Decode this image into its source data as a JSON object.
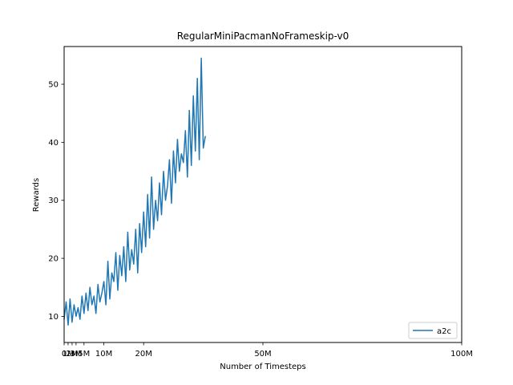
{
  "chart_data": {
    "type": "line",
    "title": "RegularMiniPacmanNoFrameskip-v0",
    "xlabel": "Number of Timesteps",
    "ylabel": "Rewards",
    "xlim": [
      0,
      100000000
    ],
    "ylim": [
      5.5,
      56.5
    ],
    "grid": false,
    "legend_position": "bottom-right",
    "x_ticks": [
      {
        "value": 0,
        "label": "0"
      },
      {
        "value": 1000000,
        "label": "1M"
      },
      {
        "value": 2000000,
        "label": "2M"
      },
      {
        "value": 3000000,
        "label": "3M"
      },
      {
        "value": 5000000,
        "label": "5M"
      },
      {
        "value": 10000000,
        "label": "10M"
      },
      {
        "value": 20000000,
        "label": "20M"
      },
      {
        "value": 50000000,
        "label": "50M"
      },
      {
        "value": 100000000,
        "label": "100M"
      }
    ],
    "y_ticks": [
      {
        "value": 10,
        "label": "10"
      },
      {
        "value": 20,
        "label": "20"
      },
      {
        "value": 30,
        "label": "30"
      },
      {
        "value": 40,
        "label": "40"
      },
      {
        "value": 50,
        "label": "50"
      }
    ],
    "series": [
      {
        "name": "a2c",
        "color": "#1f77b4",
        "x": [
          0,
          500000,
          1000000,
          1500000,
          2000000,
          2500000,
          3000000,
          3500000,
          4000000,
          4500000,
          5000000,
          5500000,
          6000000,
          6500000,
          7000000,
          7500000,
          8000000,
          8500000,
          9000000,
          9500000,
          10000000,
          10500000,
          11000000,
          11500000,
          12000000,
          12500000,
          13000000,
          13500000,
          14000000,
          14500000,
          15000000,
          15500000,
          16000000,
          16500000,
          17000000,
          17500000,
          18000000,
          18500000,
          19000000,
          19500000,
          20000000,
          20500000,
          21000000,
          21500000,
          22000000,
          22500000,
          23000000,
          23500000,
          24000000,
          24500000,
          25000000,
          25500000,
          26000000,
          26500000,
          27000000,
          27500000,
          28000000,
          28500000,
          29000000,
          29500000,
          30000000,
          30500000,
          31000000,
          31500000,
          32000000,
          32500000,
          33000000,
          33500000,
          34000000,
          34500000,
          35000000,
          35500000
        ],
        "y": [
          9.5,
          12.5,
          8.5,
          13,
          9,
          12,
          10,
          11.5,
          9.5,
          13.5,
          10.5,
          14,
          11,
          15,
          12,
          13.5,
          10.5,
          15.5,
          12.5,
          14,
          16,
          12,
          19.5,
          13,
          17.5,
          16,
          21,
          14.5,
          20.5,
          17,
          22,
          16,
          24.5,
          18,
          21.5,
          19,
          25,
          17.5,
          26,
          21,
          28,
          22,
          31,
          23.5,
          34,
          25,
          30,
          26.5,
          33,
          27.5,
          35,
          30,
          32.5,
          37,
          29.5,
          38.5,
          33,
          40.5,
          35,
          38,
          36.5,
          42,
          34,
          45.5,
          36,
          48,
          38.5,
          51,
          37,
          54.5,
          39,
          41
        ]
      }
    ]
  }
}
